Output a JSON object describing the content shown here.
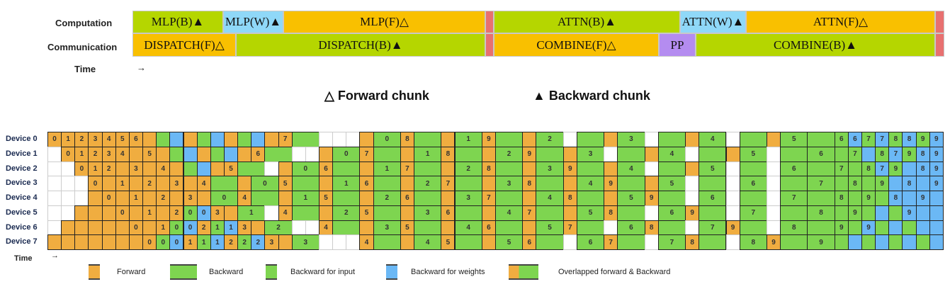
{
  "top": {
    "row_labels": {
      "computation": "Computation",
      "communication": "Communication",
      "time": "Time",
      "arrow": "→"
    },
    "computation": [
      {
        "label": "MLP(B)▲",
        "kind": "green"
      },
      {
        "label": "MLP(W)▲",
        "kind": "blue"
      },
      {
        "label": "MLP(F)△",
        "kind": "orange"
      },
      {
        "label": "",
        "kind": "red"
      },
      {
        "label": "ATTN(B)▲",
        "kind": "green"
      },
      {
        "label": "ATTN(W)▲",
        "kind": "blue"
      },
      {
        "label": "ATTN(F)△",
        "kind": "orange"
      },
      {
        "label": "",
        "kind": "red"
      }
    ],
    "communication": [
      {
        "label": "DISPATCH(F)△",
        "kind": "orange"
      },
      {
        "label": "DISPATCH(B)▲",
        "kind": "green"
      },
      {
        "label": "",
        "kind": "red"
      },
      {
        "label": "COMBINE(F)△",
        "kind": "orange"
      },
      {
        "label": "PP",
        "kind": "purple"
      },
      {
        "label": "COMBINE(B)▲",
        "kind": "green"
      },
      {
        "label": "",
        "kind": "red"
      }
    ]
  },
  "chunks": {
    "forward": "△ Forward chunk",
    "backward": "▲ Backward chunk"
  },
  "colors": {
    "green": "#b5d600",
    "blue": "#8fd8f8",
    "orange": "#f9c000",
    "red": "#e87070",
    "purple": "#b48cf0",
    "fwd": "#f0ad40",
    "bwd": "#7ed550",
    "bw": "#6bb8f5"
  },
  "schedule": {
    "devices": [
      "Device 0",
      "Device 1",
      "Device 2",
      "Device 3",
      "Device 4",
      "Device 5",
      "Device 6",
      "Device 7"
    ],
    "time_label": "Time",
    "time_arrow": "→",
    "rows": [
      "o:0 o:1 o:2 o:3 o:4 o:5 o:6 o g b o g b o g b o o:7 g2 w w w o g2:0 o:8 g2 o g2:1 o:9 g2 o g2:2 w g2 o g2:3 w g2 o g2:4 w g2 o g2:5 g2 g:6 b:6 g:7 b:7 g:8 b:8 g:9 b:9",
      "w o:0 o:1 o:2 o:3 o:4 o o:5 o g b o g b o o:6 g2 w w o g2:0 o:7 g2 o g2:1 o:8 g2 o g2:2 o:9 g2 o g2:3 w g2 o g2:4 w g2 o g2:5 w g2 g2:6 g g:7 b g:8 b:7 g:9 b:8 b:9",
      "w w o:0 o:1 o:2 o o:3 o o:4 o g b o o:5 g2 w o g2:0 o:6 g2 o g2:1 o:7 g2 o g2:2 o:8 g2 o g2:3 o:9 g2 o g2:4 w g2 o g2:5 w g2 w g2:6 g2 g:7 g g:8 b:7 g:9 b b:8 b:9",
      "w w w o:0 o o:1 o o:2 o o:3 o o:4 g2 o g2:0 o:5 g2 o g2:1 o:6 g2 o g2:2 o:7 g2 o g2:3 o:8 g2 o g2:4 o:9 g2 o g2:5 w g2 w g2:6 w g2 g2:7 g g:8 g g:9 b b:8 b b:9",
      "w w w o o:0 o o:1 o o:2 o o:3 o g2:0 o:4 g2 o g2:1 o:5 g2 o g2:2 o:6 g2 o g2:3 o:7 g2 o g2:4 o:8 g2 o g2:5 o:9 g2 w g2:6 w g2 w g2:7 g2 g:8 g g:9 g b:8 b b:9 b",
      "w w o o o o:0 o o:1 o o:2 g:0 b:0 o:3 o g2:1 w o:4 g2 o g2:2 o:5 g2 o g2:3 o:6 g2 o g2:4 o:7 g2 o g2:5 o:8 g2 w g2:6 o:9 g2 w g2:7 w g2 g2:8 g g:9 g b g b:9 b b",
      "w o o o o o o:0 o o:1 g:0 b:0 o:2 g:1 b:1 o:3 o g2:2 w w o:4 g2 o g2:3 o:5 g2 o g2:4 o:6 g2 o g2:5 o:7 g2 w g2:6 o:8 g2 w g2:7 o:9 g2 w g2:8 g2 g:9 g b:9 g b g b b",
      "o o o o o o o o:0 g:0 b:0 o:1 g:1 b:1 o:2 g:2 b:2 o:3 o g2:3 w w w o:4 g2 o g2:4 o:5 g2 o g2:5 o:6 g2 w g2:6 o:7 g2 w g2:7 o:8 g2 w g2:8 o:9 g2 g2:9 g b g b g b g b"
    ]
  },
  "legend": [
    {
      "label": "Forward",
      "kind": "fwd"
    },
    {
      "label": "Backward",
      "kind": "bwd"
    },
    {
      "label": "Backward for input",
      "kind": "bin"
    },
    {
      "label": "Backward for weights",
      "kind": "bw"
    },
    {
      "label": "Overlapped forward & Backward",
      "kind": "ov"
    }
  ]
}
